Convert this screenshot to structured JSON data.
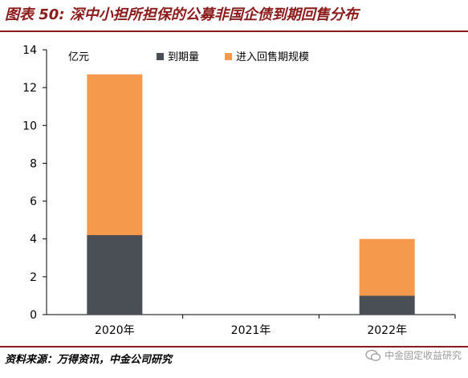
{
  "title": "图表 50: 深中小担所担保的公募非国企债到期回售分布",
  "source": "资料来源：万得资讯，中金公司研究",
  "watermark": "中金固定收益研究",
  "chart_data": {
    "type": "bar",
    "stacked": true,
    "categories": [
      "2020年",
      "2021年",
      "2022年"
    ],
    "series": [
      {
        "name": "到期量",
        "values": [
          4.2,
          0,
          1.0
        ],
        "color": "#4a4e55"
      },
      {
        "name": "进入回售期规模",
        "values": [
          8.5,
          0,
          3.0
        ],
        "color": "#f59a4c"
      }
    ],
    "ylabel": "亿元",
    "ylim": [
      0,
      14
    ],
    "yticks": [
      0,
      2,
      4,
      6,
      8,
      10,
      12,
      14
    ],
    "grid": false,
    "legend_position": "top-right"
  }
}
